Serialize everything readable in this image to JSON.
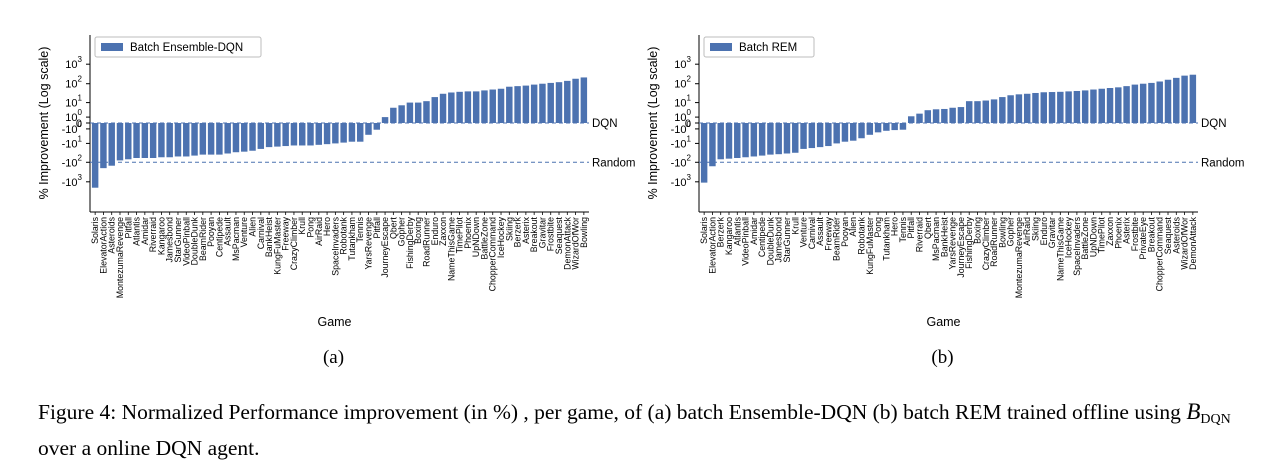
{
  "chart_data": [
    {
      "type": "bar",
      "y_scale": "symlog",
      "ylabel": "% Improvement (Log scale)",
      "xlabel": "Game",
      "subfigure_label": "(a)",
      "bar_color": "#4c72b0",
      "legend_position": "top-left",
      "series": [
        {
          "name": "Batch Ensemble-DQN"
        }
      ],
      "yticks": [
        "10^3",
        "10^2",
        "10^1",
        "10^0",
        "0",
        "-10^0",
        "-10^1",
        "-10^2",
        "-10^3"
      ],
      "reference_lines": [
        {
          "label": "DQN",
          "value": 0
        },
        {
          "label": "Random",
          "value": -100
        }
      ],
      "categories": [
        "Solaris",
        "ElevatorAction",
        "Asteroids",
        "MontezumaRevenge",
        "Pitfall",
        "Atlantis",
        "Amidar",
        "Riverraid",
        "Kangaroo",
        "Jamesbond",
        "StarGunner",
        "VideoPinball",
        "DoubleDunk",
        "BeamRider",
        "Pooyan",
        "Centipede",
        "Assault",
        "MsPacman",
        "Venture",
        "Alien",
        "Carnival",
        "BankHeist",
        "KungFuMaster",
        "Freeway",
        "CrazyClimber",
        "Krull",
        "Pong",
        "AirRaid",
        "Hero",
        "SpaceInvaders",
        "Robotank",
        "Tutankham",
        "Tennis",
        "YarsRevenge",
        "Pitfall",
        "JourneyEscape",
        "Qbert",
        "Gopher",
        "FishingDerby",
        "Boxing",
        "RoadRunner",
        "Enduro",
        "Zaxxon",
        "NameThisGame",
        "TimePilot",
        "Phoenix",
        "UpNDown",
        "BattleZone",
        "ChopperCommand",
        "IceHockey",
        "Skiing",
        "Berzerk",
        "Asterix",
        "Breakout",
        "Gravitar",
        "Frostbite",
        "Seaquest",
        "DemonAttack",
        "WizardOfWor",
        "Bowling"
      ],
      "values": [
        -2000,
        -200,
        -150,
        -80,
        -70,
        -60,
        -60,
        -60,
        -55,
        -55,
        -50,
        -50,
        -45,
        -40,
        -40,
        -40,
        -35,
        -30,
        -28,
        -25,
        -20,
        -16,
        -15,
        -14,
        -13,
        -13,
        -13,
        -12,
        -11,
        -10,
        -9,
        -8,
        -8,
        -3,
        -1.2,
        1,
        5,
        7,
        10,
        10,
        12,
        20,
        30,
        35,
        38,
        40,
        40,
        45,
        50,
        55,
        70,
        75,
        80,
        90,
        100,
        110,
        120,
        140,
        180,
        210
      ]
    },
    {
      "type": "bar",
      "y_scale": "symlog",
      "ylabel": "% Improvement (Log scale)",
      "xlabel": "Game",
      "subfigure_label": "(b)",
      "bar_color": "#4c72b0",
      "legend_position": "top-left",
      "series": [
        {
          "name": "Batch REM"
        }
      ],
      "yticks": [
        "10^3",
        "10^2",
        "10^1",
        "10^0",
        "0",
        "-10^0",
        "-10^1",
        "-10^2",
        "-10^3"
      ],
      "reference_lines": [
        {
          "label": "DQN",
          "value": 0
        },
        {
          "label": "Random",
          "value": -100
        }
      ],
      "categories": [
        "Solaris",
        "ElevatorAction",
        "Berzerk",
        "Kangaroo",
        "Atlantis",
        "VideoPinball",
        "Amidar",
        "Centipede",
        "DoubleDunk",
        "Jamesbond",
        "StarGunner",
        "Krull",
        "Venture",
        "Carnival",
        "Assault",
        "Freeway",
        "BeamRider",
        "Pooyan",
        "Alien",
        "Robotank",
        "KungFuMaster",
        "Pong",
        "Tutankham",
        "Hero",
        "Tennis",
        "Pitfall",
        "Riverraid",
        "Qbert",
        "MsPacman",
        "BankHeist",
        "YarsRevenge",
        "JourneyEscape",
        "FishingDerby",
        "Boxing",
        "CrazyClimber",
        "RoadRunner",
        "Bowling",
        "Gopher",
        "MontezumaRevenge",
        "AirRaid",
        "Skiing",
        "Enduro",
        "Gravitar",
        "NameThisGame",
        "IceHockey",
        "SpaceInvaders",
        "BattleZone",
        "UpNDown",
        "TimePilot",
        "Zaxxon",
        "Phoenix",
        "Asterix",
        "Frostbite",
        "PrivateEye",
        "Breakout",
        "ChopperCommand",
        "Seaquest",
        "Asteroids",
        "WizardOfWor",
        "DemonAttack"
      ],
      "values": [
        -1100,
        -160,
        -70,
        -65,
        -60,
        -55,
        -50,
        -45,
        -40,
        -38,
        -35,
        -32,
        -20,
        -18,
        -16,
        -14,
        -10,
        -8,
        -7,
        -5,
        -3,
        -2,
        -1.5,
        -1.3,
        -1.2,
        1.2,
        2,
        3.5,
        4,
        4.2,
        5,
        5.5,
        12,
        12,
        13,
        15,
        20,
        25,
        28,
        30,
        33,
        36,
        37,
        38,
        40,
        42,
        45,
        50,
        55,
        60,
        65,
        75,
        90,
        100,
        110,
        130,
        160,
        200,
        260,
        290
      ]
    }
  ],
  "caption": {
    "prefix": "Figure 4: Normalized Performance improvement (in %) , per game, of (a) batch Ensemble-DQN (b) batch REM trained offline using ",
    "symbol": "B",
    "symbol_sub": "DQN",
    "suffix": " over a online DQN agent."
  }
}
